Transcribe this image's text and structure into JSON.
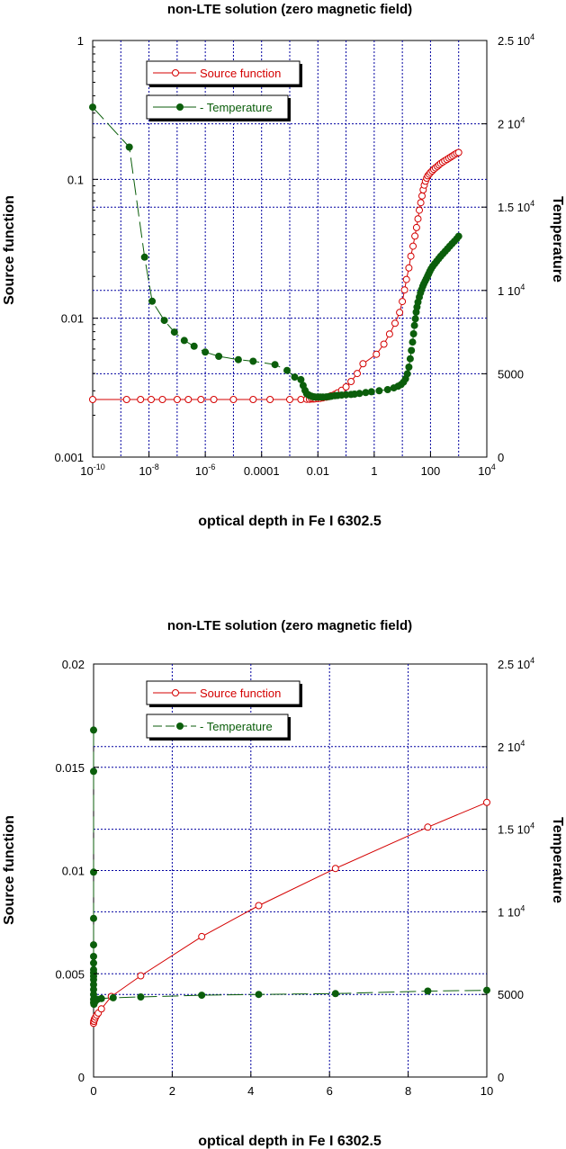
{
  "colors": {
    "source": "#d40000",
    "temperature": "#0b5e0b",
    "grid": "#0000a0"
  },
  "chart_data": [
    {
      "type": "line",
      "title": "non-LTE solution (zero magnetic field)",
      "xlabel": "optical depth in Fe I 6302.5",
      "ylabel": "Source function",
      "y2label": "Temperature",
      "xscale": "log",
      "yscale": "log",
      "xlim": [
        1e-10,
        10000
      ],
      "ylim": [
        0.001,
        1
      ],
      "y2lim": [
        0,
        25000
      ],
      "xticks": [
        {
          "value": 1e-10,
          "base": "10",
          "exp": "-10"
        },
        {
          "value": 1e-08,
          "base": "10",
          "exp": "-8"
        },
        {
          "value": 1e-06,
          "base": "10",
          "exp": "-6"
        },
        {
          "value": 0.0001,
          "label": "0.0001"
        },
        {
          "value": 0.01,
          "label": "0.01"
        },
        {
          "value": 1,
          "label": "1"
        },
        {
          "value": 100,
          "label": "100"
        },
        {
          "value": 10000,
          "base": "10",
          "exp": "4"
        }
      ],
      "yticks": [
        {
          "value": 0.001,
          "label": "0.001"
        },
        {
          "value": 0.01,
          "label": "0.01"
        },
        {
          "value": 0.1,
          "label": "0.1"
        },
        {
          "value": 1,
          "label": "1"
        }
      ],
      "y2ticks": [
        {
          "value": 0,
          "label": "0"
        },
        {
          "value": 5000,
          "label": "5000"
        },
        {
          "value": 10000,
          "base": "1 10",
          "exp": "4"
        },
        {
          "value": 15000,
          "base": "1.5 10",
          "exp": "4"
        },
        {
          "value": 20000,
          "base": "2 10",
          "exp": "4"
        },
        {
          "value": 25000,
          "base": "2.5 10",
          "exp": "4"
        }
      ],
      "series": [
        {
          "name": "Source function",
          "axis": "left",
          "style": "line-open-circle",
          "x": [
            1e-10,
            1.6e-09,
            5e-09,
            1.2e-08,
            3e-08,
            1e-07,
            2.5e-07,
            7e-07,
            2e-06,
            1e-05,
            5e-05,
            0.0002,
            0.001,
            0.0025,
            0.004,
            0.005,
            0.006,
            0.007,
            0.008,
            0.01,
            0.012,
            0.015,
            0.02,
            0.025,
            0.03,
            0.04,
            0.05,
            0.07,
            0.1,
            0.15,
            0.25,
            0.4,
            1.2,
            2.2,
            3.5,
            5.5,
            8,
            10,
            12,
            14,
            17,
            20,
            24,
            28,
            32,
            36,
            40,
            45,
            50,
            55,
            60,
            66,
            73,
            80,
            90,
            100,
            115,
            130,
            150,
            175,
            200,
            230,
            270,
            320,
            380,
            450,
            530,
            620,
            720,
            850,
            1000
          ],
          "y": [
            0.0026,
            0.0026,
            0.0026,
            0.0026,
            0.0026,
            0.0026,
            0.0026,
            0.0026,
            0.0026,
            0.0026,
            0.0026,
            0.0026,
            0.0026,
            0.0026,
            0.00261,
            0.00261,
            0.00262,
            0.00262,
            0.00263,
            0.00264,
            0.00265,
            0.00267,
            0.0027,
            0.00273,
            0.00277,
            0.00283,
            0.0029,
            0.00303,
            0.0032,
            0.0035,
            0.004,
            0.0047,
            0.0055,
            0.0065,
            0.0077,
            0.0092,
            0.011,
            0.0132,
            0.016,
            0.019,
            0.023,
            0.028,
            0.033,
            0.039,
            0.045,
            0.052,
            0.06,
            0.068,
            0.076,
            0.084,
            0.091,
            0.097,
            0.102,
            0.106,
            0.109,
            0.112,
            0.115,
            0.118,
            0.121,
            0.124,
            0.127,
            0.13,
            0.133,
            0.136,
            0.139,
            0.142,
            0.145,
            0.148,
            0.151,
            0.154,
            0.156
          ]
        },
        {
          "name": "Temperature",
          "axis": "right",
          "style": "dashed-filled-dot",
          "x": [
            1e-10,
            2e-09,
            7e-09,
            1.3e-08,
            3.5e-08,
            8e-08,
            1.8e-07,
            4e-07,
            1e-06,
            3e-06,
            1.5e-05,
            5e-05,
            0.0003,
            0.0008,
            0.0015,
            0.0025,
            0.003,
            0.0035,
            0.004,
            0.0045,
            0.005,
            0.006,
            0.007,
            0.008,
            0.01,
            0.012,
            0.015,
            0.02,
            0.025,
            0.03,
            0.04,
            0.05,
            0.07,
            0.1,
            0.15,
            0.2,
            0.3,
            0.5,
            0.8,
            1.5,
            3,
            5,
            7,
            9,
            11,
            13,
            15,
            17,
            19,
            21,
            23,
            25,
            27,
            29,
            31,
            33,
            36,
            40,
            44,
            48,
            53,
            58,
            64,
            71,
            78,
            86,
            95,
            105,
            120,
            140,
            165,
            195,
            230,
            275,
            330,
            400,
            480,
            580,
            700,
            850,
            1000
          ],
          "y": [
            21000,
            18600,
            12000,
            9350,
            8200,
            7500,
            7000,
            6650,
            6300,
            6050,
            5850,
            5750,
            5550,
            5200,
            4800,
            4650,
            4300,
            4000,
            3800,
            3750,
            3700,
            3650,
            3620,
            3600,
            3600,
            3600,
            3600,
            3610,
            3630,
            3650,
            3680,
            3700,
            3720,
            3740,
            3760,
            3780,
            3820,
            3870,
            3920,
            3980,
            4050,
            4150,
            4250,
            4350,
            4500,
            4700,
            5000,
            5400,
            5900,
            6400,
            6900,
            7400,
            7900,
            8300,
            8700,
            9000,
            9300,
            9600,
            9850,
            10050,
            10250,
            10400,
            10550,
            10700,
            10850,
            11000,
            11150,
            11300,
            11450,
            11600,
            11750,
            11900,
            12050,
            12200,
            12350,
            12500,
            12650,
            12800,
            12950,
            13100,
            13250
          ]
        }
      ]
    },
    {
      "type": "line",
      "title": "non-LTE solution (zero magnetic field)",
      "xlabel": "optical depth in Fe I 6302.5",
      "ylabel": "Source function",
      "y2label": "Temperature",
      "xscale": "linear",
      "yscale": "linear",
      "xlim": [
        0,
        10
      ],
      "ylim": [
        0,
        0.02
      ],
      "y2lim": [
        0,
        25000
      ],
      "xticks": [
        {
          "value": 0,
          "label": "0"
        },
        {
          "value": 2,
          "label": "2"
        },
        {
          "value": 4,
          "label": "4"
        },
        {
          "value": 6,
          "label": "6"
        },
        {
          "value": 8,
          "label": "8"
        },
        {
          "value": 10,
          "label": "10"
        }
      ],
      "yticks": [
        {
          "value": 0,
          "label": "0"
        },
        {
          "value": 0.005,
          "label": "0.005"
        },
        {
          "value": 0.01,
          "label": "0.01"
        },
        {
          "value": 0.015,
          "label": "0.015"
        },
        {
          "value": 0.02,
          "label": "0.02"
        }
      ],
      "y2ticks": [
        {
          "value": 0,
          "label": "0"
        },
        {
          "value": 5000,
          "label": "5000"
        },
        {
          "value": 10000,
          "base": "1 10",
          "exp": "4"
        },
        {
          "value": 15000,
          "base": "1.5 10",
          "exp": "4"
        },
        {
          "value": 20000,
          "base": "2 10",
          "exp": "4"
        },
        {
          "value": 25000,
          "base": "2.5 10",
          "exp": "4"
        }
      ],
      "series": [
        {
          "name": "Source function",
          "axis": "left",
          "style": "line-open-circle",
          "x": [
            0,
            0.005,
            0.01,
            0.02,
            0.03,
            0.05,
            0.08,
            0.12,
            0.2,
            0.45,
            1.2,
            2.75,
            4.2,
            6.15,
            8.5,
            10
          ],
          "y": [
            0.0026,
            0.0027,
            0.0027,
            0.0028,
            0.0028,
            0.0029,
            0.003,
            0.0031,
            0.0033,
            0.0039,
            0.0049,
            0.0068,
            0.0083,
            0.0101,
            0.0121,
            0.0133
          ]
        },
        {
          "name": "Temperature",
          "axis": "right",
          "style": "dashed-filled-dot",
          "x": [
            0,
            0,
            0,
            0,
            0,
            0,
            0,
            0,
            0,
            0,
            0,
            0,
            0,
            0,
            0,
            0,
            0.01,
            0.02,
            0.05,
            0.1,
            0.2,
            0.5,
            1.2,
            2.75,
            4.2,
            6.15,
            8.5,
            10
          ],
          "y": [
            21000,
            18500,
            12400,
            9600,
            8000,
            7300,
            6900,
            6500,
            6300,
            6100,
            5900,
            5600,
            5300,
            5000,
            4700,
            4500,
            4400,
            4500,
            4600,
            4700,
            4750,
            4800,
            4850,
            4950,
            5000,
            5050,
            5200,
            5250
          ]
        }
      ]
    }
  ]
}
